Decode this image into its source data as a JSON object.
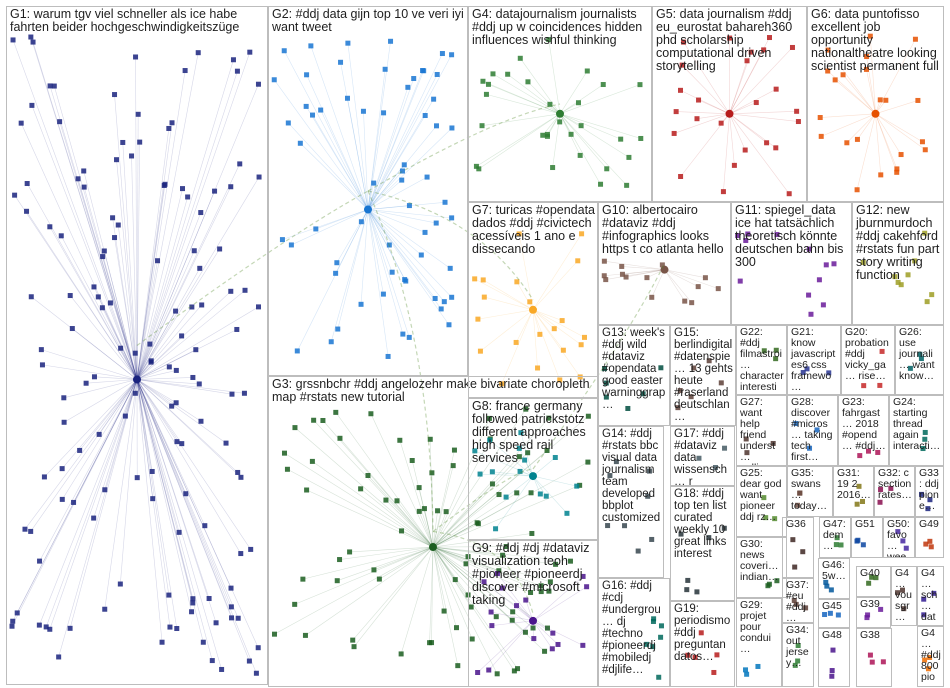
{
  "groups": [
    {
      "id": "G1",
      "label": "G1: warum tgv viel schneller als ice habe fahrten beider hochgeschwindigkeitszüge",
      "color": "#1a237e"
    },
    {
      "id": "G2",
      "label": "G2: #ddj data gijn top 10 ve veri iyi want tweet",
      "color": "#1976d2"
    },
    {
      "id": "G3",
      "label": "G3: grssnbchr #ddj angelozehr make bivariate choropleth map #rstats new tutorial",
      "color": "#1b5e20"
    },
    {
      "id": "G4",
      "label": "G4: datajournalism journalists #ddj up w coincidences hidden influences wishful thinking",
      "color": "#2e7d32"
    },
    {
      "id": "G5",
      "label": "G5: data journalism #ddj eu_eurostat bahareh360 phd scholarship computational driven storytelling",
      "color": "#b71c1c"
    },
    {
      "id": "G6",
      "label": "G6: data puntofisso excellent job opportunity nationaltheatre looking scientist permanent full",
      "color": "#e65100"
    },
    {
      "id": "G7",
      "label": "G7: turicas #opendata dados #ddj #civictech acessíveis 1 ano e dissecando",
      "color": "#f9a825"
    },
    {
      "id": "G8",
      "label": "G8: france germany followed patrickstotz different approaches high speed rail services",
      "color": "#00838f"
    },
    {
      "id": "G9",
      "label": "G9: #ddj #dj #dataviz visualization teoh #pioneer #pioneerdj discover #microsoft taking",
      "color": "#4a148c"
    },
    {
      "id": "G10",
      "label": "G10: albertocairo #dataviz #ddj #infographics looks https t co atlanta hello",
      "color": "#795548"
    },
    {
      "id": "G11",
      "label": "G11: spiegel_data ice hat tatsächlich theoretisch könnte deutschen bahn bis 300",
      "color": "#6a1b9a"
    },
    {
      "id": "G12",
      "label": "G12: new jburnmurdoch #ddj cakehford #rstats fun part story writing function",
      "color": "#9e9d24"
    },
    {
      "id": "G13",
      "label": "G13: week's #ddj wild #dataviz #opendata good easter warninggrap…",
      "color": "#004d40"
    },
    {
      "id": "G15",
      "label": "G15: berlindigital #datenspie… 13 gehts heute #raserland deutschlan…",
      "color": "#5d4037"
    },
    {
      "id": "G22",
      "label": "G22: #ddj filmastroi… character interesti… explanati…",
      "color": "#33691e"
    },
    {
      "id": "G21",
      "label": "G21: know javascript es6 css framewo…",
      "color": "#283593"
    },
    {
      "id": "G20",
      "label": "G20: probation #ddj vicky_ga… rise…",
      "color": "#c62828"
    },
    {
      "id": "G26",
      "label": "G26: use journali… want know…",
      "color": "#006064"
    },
    {
      "id": "G14",
      "label": "G14: #ddj #rstats bbc visual data journalism team developed bbplot customized",
      "color": "#37474f"
    },
    {
      "id": "G17",
      "label": "G17: #ddj #dataviz data wissensch… r mitarbeiter lehr…",
      "color": "#455a64"
    },
    {
      "id": "G27",
      "label": "G27: want help friend underst… polling…",
      "color": "#4e342e"
    },
    {
      "id": "G28",
      "label": "G28: discover #micros… taking tech first…",
      "color": "#1565c0"
    },
    {
      "id": "G23",
      "label": "G23: fahrgast… 2018 #opend… #ddj…",
      "color": "#ad1457"
    },
    {
      "id": "G24",
      "label": "G24: starting thread again interacti…",
      "color": "#00695c"
    },
    {
      "id": "G25",
      "label": "G25: dear god want pioneer ddj rz…",
      "color": "#558b2f"
    },
    {
      "id": "G35",
      "label": "G35: swans… today…",
      "color": "#6d4c41"
    },
    {
      "id": "G31",
      "label": "G31: 19 2 2016…",
      "color": "#827717"
    },
    {
      "id": "G32",
      "label": "G32: c section rates…",
      "color": "#880e4f"
    },
    {
      "id": "G33",
      "label": "G33: ddj pione…",
      "color": "#1a237e"
    },
    {
      "id": "G18",
      "label": "G18: #ddj top ten list curated weekly 10 great links interest",
      "color": "#263238"
    },
    {
      "id": "G36",
      "label": "G36",
      "color": "#3e2723"
    },
    {
      "id": "G47",
      "label": "G47: dem…",
      "color": "#2e7d32"
    },
    {
      "id": "G51",
      "label": "G51",
      "color": "#0d47a1"
    },
    {
      "id": "G50",
      "label": "G50: favo… wee…",
      "color": "#4527a0"
    },
    {
      "id": "G49",
      "label": "G49",
      "color": "#bf360c"
    },
    {
      "id": "G30",
      "label": "G30: news coveri… indian…",
      "color": "#1b5e20"
    },
    {
      "id": "G46",
      "label": "G46: 5w…",
      "color": "#01579b"
    },
    {
      "id": "G40",
      "label": "G40",
      "color": "#33691e"
    },
    {
      "id": "G4x",
      "label": "G4… vousgr… au dat…",
      "color": "#4e342e"
    },
    {
      "id": "G4y",
      "label": "G4… sch… dat…",
      "color": "#311b92"
    },
    {
      "id": "G16",
      "label": "G16: #ddj #cdj #undergrou… dj #techno #pioneerdj #mobiledj #djlife…",
      "color": "#00695c"
    },
    {
      "id": "G19",
      "label": "G19: periodismo #ddj preguntan datos…",
      "color": "#b71c1c"
    },
    {
      "id": "G37",
      "label": "G37: #eu #ddj…",
      "color": "#5d4037"
    },
    {
      "id": "G45",
      "label": "G45",
      "color": "#1565c0"
    },
    {
      "id": "G39",
      "label": "G39",
      "color": "#6a1b9a"
    },
    {
      "id": "G4z",
      "label": "G4… #ddj 800 pio…",
      "color": "#ef6c00"
    },
    {
      "id": "G29",
      "label": "G29: projet pour condui…",
      "color": "#0277bd"
    },
    {
      "id": "G34",
      "label": "G34: out jersey…",
      "color": "#2e7d32"
    },
    {
      "id": "G48",
      "label": "G48",
      "color": "#4a148c"
    },
    {
      "id": "G38",
      "label": "G38",
      "color": "#ad1457"
    }
  ]
}
